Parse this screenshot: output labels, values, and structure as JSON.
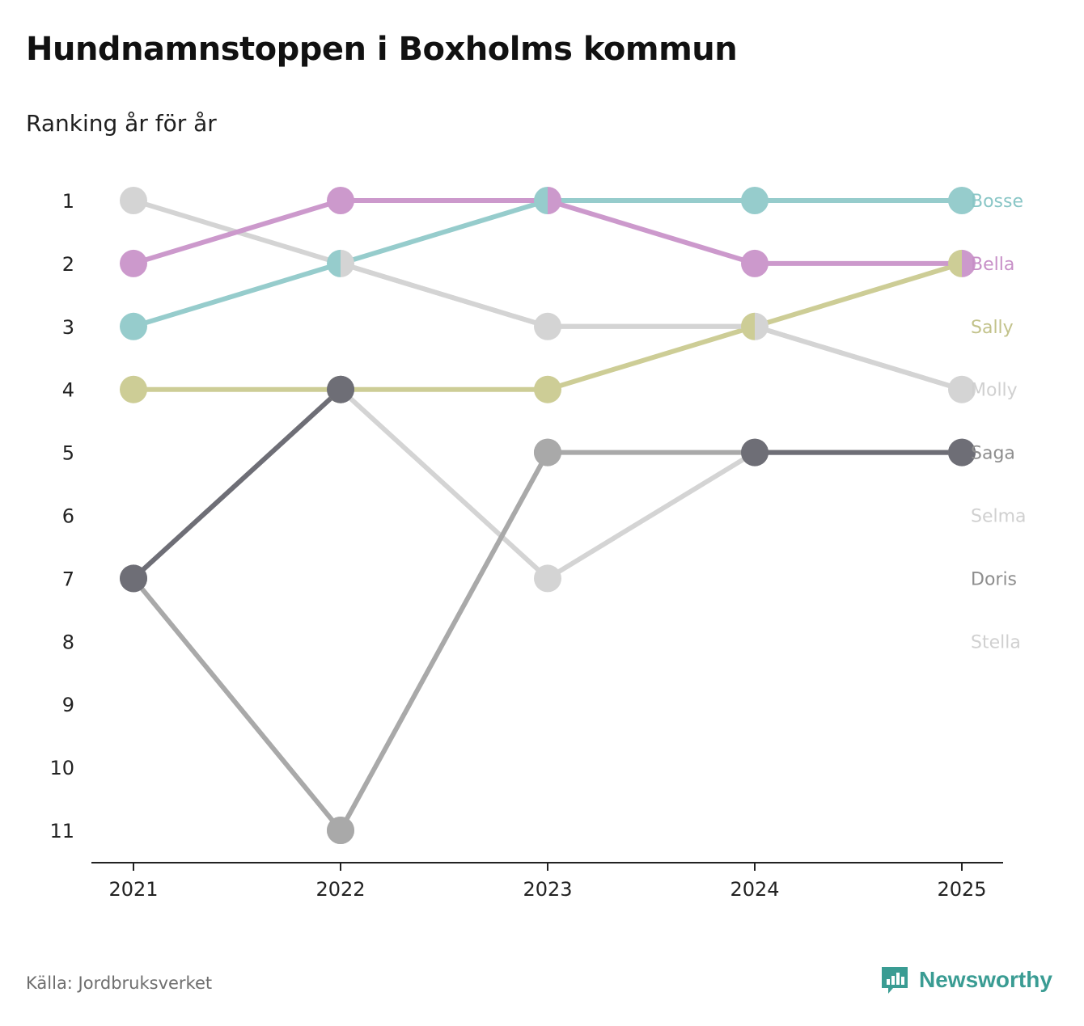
{
  "title": "Hundnamnstoppen i Boxholms kommun",
  "subtitle": "Ranking år för år",
  "source": "Källa: Jordbruksverket",
  "brand": {
    "name": "Newsworthy",
    "icon": "newsworthy-logo-icon",
    "color": "#3a9c93"
  },
  "chart_data": {
    "type": "line",
    "title": "Hundnamnstoppen i Boxholms kommun",
    "subtitle": "Ranking år för år",
    "x": [
      "2021",
      "2022",
      "2023",
      "2024",
      "2025"
    ],
    "y_ticks": [
      "1",
      "2",
      "3",
      "4",
      "5",
      "6",
      "7",
      "8",
      "9",
      "10",
      "11"
    ],
    "ylim": [
      1,
      11
    ],
    "y_inverted": true,
    "xlabel": "",
    "ylabel": "",
    "grid": false,
    "legend": "right, labels at end of lines",
    "series": [
      {
        "name": "Stella",
        "color": "#d4d4d4",
        "label_color": "#d0d0d0",
        "label_rank": 8,
        "values": [
          1,
          2,
          3,
          3,
          4
        ]
      },
      {
        "name": "Selma",
        "color": "#d4d4d4",
        "label_color": "#d0d0d0",
        "label_rank": 6,
        "values": [
          7,
          4,
          7,
          5,
          5
        ]
      },
      {
        "name": "Doris",
        "color": "#a9a9a9",
        "label_color": "#8e8e8e",
        "label_rank": 7,
        "values": [
          7,
          11,
          5,
          5,
          5
        ]
      },
      {
        "name": "Sally",
        "color": "#cdcd96",
        "label_color": "#c2c28a",
        "label_rank": 3,
        "values": [
          4,
          4,
          4,
          3,
          2
        ]
      },
      {
        "name": "Bosse",
        "color": "#96cccc",
        "label_color": "#89c6c6",
        "label_rank": 1,
        "values": [
          3,
          2,
          1,
          1,
          1
        ]
      },
      {
        "name": "Bella",
        "color": "#cc99cc",
        "label_color": "#c78fc7",
        "label_rank": 2,
        "values": [
          2,
          1,
          1,
          2,
          2
        ]
      },
      {
        "name": "Molly",
        "color": "#d4d4d4",
        "label_color": "#d0d0d0",
        "label_rank": 4,
        "values": [
          null,
          2,
          3,
          3,
          4
        ]
      },
      {
        "name": "Saga",
        "color": "#6e6e76",
        "label_color": "#8e8e8e",
        "label_rank": 5,
        "values": [
          7,
          4,
          null,
          5,
          5
        ]
      }
    ]
  }
}
